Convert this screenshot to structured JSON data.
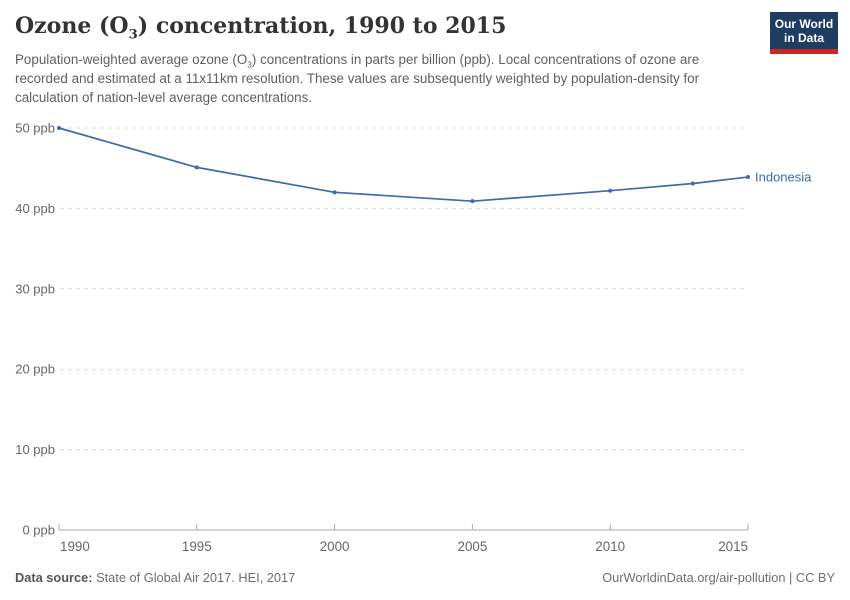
{
  "header": {
    "title_pre": "Ozone (O",
    "title_sub": "3",
    "title_post": ") concentration, 1990 to 2015",
    "logo": {
      "line1": "Our World",
      "line2": "in Data"
    }
  },
  "subtitle": {
    "pre": "Population-weighted average ozone (O",
    "sub": "3",
    "post": ") concentrations in parts per billion (ppb). Local concentrations of ozone are recorded and estimated at a 11x11km resolution. These values are subsequently weighted by population-density for calculation of nation-level average concentrations."
  },
  "chart_data": {
    "type": "line",
    "title": "Ozone (O₃) concentration, 1990 to 2015",
    "x": [
      1990,
      1995,
      2000,
      2005,
      2010,
      2013,
      2015
    ],
    "series": [
      {
        "name": "Indonesia",
        "values": [
          50.0,
          45.1,
          42.0,
          40.9,
          42.2,
          43.1,
          43.9
        ]
      }
    ],
    "x_ticks": [
      1990,
      1995,
      2000,
      2005,
      2010,
      2015
    ],
    "y_ticks": [
      0,
      10,
      20,
      30,
      40,
      50
    ],
    "y_tick_suffix": " ppb",
    "xlim": [
      1990,
      2015
    ],
    "ylim": [
      0,
      50
    ],
    "grid": "horizontal-dashed",
    "legend": "end-of-line-label"
  },
  "footer": {
    "source_label": "Data source:",
    "source_text": " State of Global Air 2017. HEI, 2017",
    "right_text": "OurWorldinData.org/air-pollution | CC BY"
  },
  "colors": {
    "series_line": "#3d6aab",
    "series_label": "#3d6aab",
    "gridline": "#d8d8d8",
    "axis_line": "#a9a9a9",
    "tick_label": "#666666",
    "logo_bg": "#1d3d63",
    "logo_stripe": "#c52a24"
  }
}
